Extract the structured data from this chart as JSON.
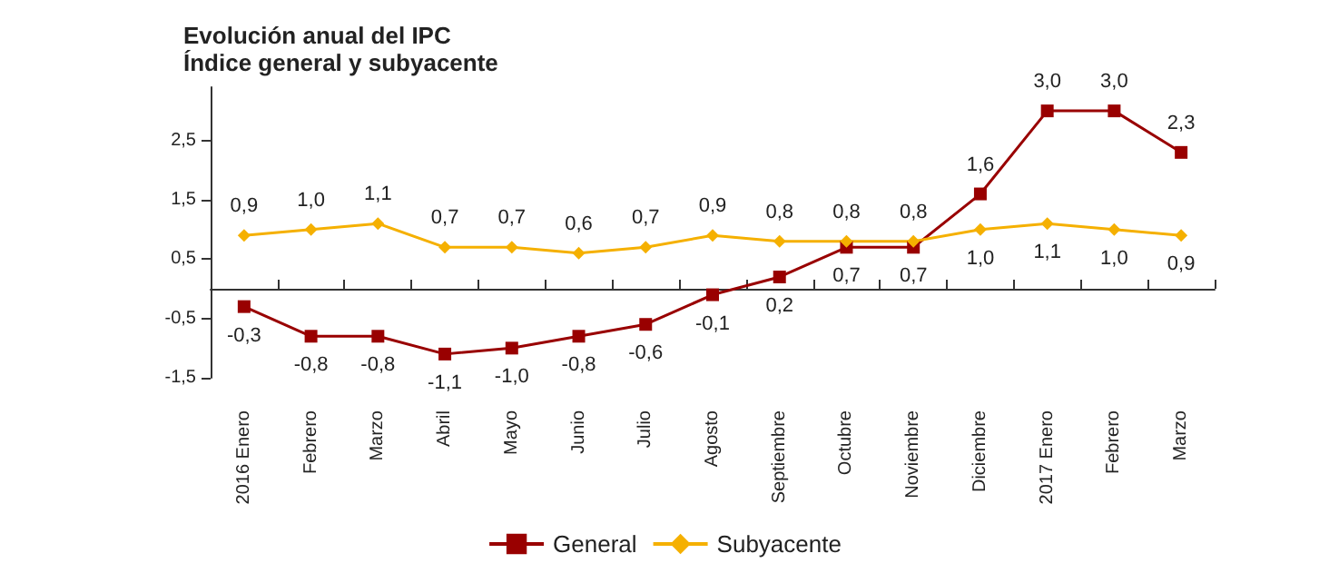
{
  "chart_data": {
    "type": "line",
    "title": "Evolución anual del IPC",
    "subtitle": "Índice general y subyacente",
    "categories": [
      "2016 Enero",
      "Febrero",
      "Marzo",
      "Abril",
      "Mayo",
      "Junio",
      "Julio",
      "Agosto",
      "Septiembre",
      "Octubre",
      "Noviembre",
      "Diciembre",
      "2017 Enero",
      "Febrero",
      "Marzo"
    ],
    "series": [
      {
        "name": "General",
        "color": "#990000",
        "marker": "square",
        "values": [
          -0.3,
          -0.8,
          -0.8,
          -1.1,
          -1.0,
          -0.8,
          -0.6,
          -0.1,
          0.2,
          0.7,
          0.7,
          1.6,
          3.0,
          3.0,
          2.3
        ],
        "value_labels": [
          "-0,3",
          "-0,8",
          "-0,8",
          "-1,1",
          "-1,0",
          "-0,8",
          "-0,6",
          "-0,1",
          "0,2",
          "0,7",
          "0,7",
          "1,6",
          "3,0",
          "3,0",
          "2,3"
        ]
      },
      {
        "name": "Subyacente",
        "color": "#f5b000",
        "marker": "diamond",
        "values": [
          0.9,
          1.0,
          1.1,
          0.7,
          0.7,
          0.6,
          0.7,
          0.9,
          0.8,
          0.8,
          0.8,
          1.0,
          1.1,
          1.0,
          0.9
        ],
        "value_labels": [
          "0,9",
          "1,0",
          "1,1",
          "0,7",
          "0,7",
          "0,6",
          "0,7",
          "0,9",
          "0,8",
          "0,8",
          "0,8",
          "1,0",
          "1,1",
          "1,0",
          "0,9"
        ]
      }
    ],
    "ylim": [
      -1.5,
      3.4
    ],
    "yticks": [
      {
        "value": -1.5,
        "label": "-1,5"
      },
      {
        "value": -0.5,
        "label": "-0,5"
      },
      {
        "value": 0.5,
        "label": "0,5"
      },
      {
        "value": 1.5,
        "label": "1,5"
      },
      {
        "value": 2.5,
        "label": "2,5"
      }
    ],
    "grid": false,
    "legend": "bottom"
  }
}
